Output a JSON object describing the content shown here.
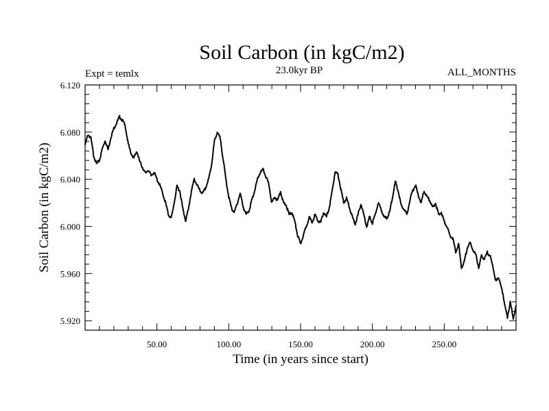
{
  "chart_data": {
    "type": "line",
    "title": "Soil Carbon (in kgC/m2)",
    "subtitle_left": "Expt = temlx",
    "subtitle_center": "23.0kyr BP",
    "subtitle_right": "ALL_MONTHS",
    "xlabel": "Time (in years since start)",
    "ylabel": "Soil Carbon (in kgC/m2)",
    "xlim": [
      0,
      300
    ],
    "ylim": [
      5.912,
      6.12
    ],
    "x_ticks": [
      50,
      100,
      150,
      200,
      250
    ],
    "x_tick_labels": [
      "50.00",
      "100.00",
      "150.00",
      "200.00",
      "250.00"
    ],
    "y_ticks": [
      6.12,
      6.08,
      6.04,
      6.0,
      5.96,
      5.92
    ],
    "y_tick_labels": [
      "6.120",
      "6.080",
      "6.040",
      "6.000",
      "5.960",
      "5.920"
    ],
    "series": [
      {
        "name": "Soil Carbon",
        "color": "#000000",
        "x": [
          0,
          2,
          4,
          6,
          8,
          10,
          12,
          14,
          16,
          18,
          20,
          22,
          24,
          26,
          28,
          30,
          32,
          34,
          36,
          38,
          40,
          42,
          44,
          46,
          48,
          50,
          52,
          54,
          56,
          58,
          60,
          62,
          64,
          66,
          68,
          70,
          72,
          74,
          76,
          78,
          80,
          82,
          84,
          86,
          88,
          90,
          92,
          94,
          96,
          98,
          100,
          102,
          104,
          106,
          108,
          110,
          112,
          114,
          116,
          118,
          120,
          122,
          124,
          126,
          128,
          130,
          132,
          134,
          136,
          138,
          140,
          142,
          144,
          146,
          148,
          150,
          152,
          154,
          156,
          158,
          160,
          162,
          164,
          166,
          168,
          170,
          172,
          174,
          176,
          178,
          180,
          182,
          184,
          186,
          188,
          190,
          192,
          194,
          196,
          198,
          200,
          202,
          204,
          206,
          208,
          210,
          212,
          214,
          216,
          218,
          220,
          222,
          224,
          226,
          228,
          230,
          232,
          234,
          236,
          238,
          240,
          242,
          244,
          246,
          248,
          250,
          252,
          254,
          256,
          258,
          260,
          262,
          264,
          266,
          268,
          270,
          272,
          274,
          276,
          278,
          280,
          282,
          284,
          286,
          288,
          290,
          292,
          294,
          296,
          298,
          300
        ],
        "y": [
          6.069,
          6.078,
          6.075,
          6.06,
          6.053,
          6.056,
          6.066,
          6.073,
          6.065,
          6.076,
          6.083,
          6.088,
          6.093,
          6.09,
          6.085,
          6.07,
          6.062,
          6.058,
          6.064,
          6.055,
          6.05,
          6.045,
          6.048,
          6.043,
          6.046,
          6.04,
          6.035,
          6.028,
          6.02,
          6.01,
          6.007,
          6.02,
          6.034,
          6.03,
          6.015,
          6.005,
          6.015,
          6.03,
          6.04,
          6.035,
          6.03,
          6.028,
          6.033,
          6.04,
          6.052,
          6.072,
          6.08,
          6.075,
          6.058,
          6.04,
          6.025,
          6.015,
          6.012,
          6.02,
          6.028,
          6.017,
          6.01,
          6.013,
          6.022,
          6.03,
          6.04,
          6.046,
          6.048,
          6.042,
          6.035,
          6.02,
          6.025,
          6.022,
          6.03,
          6.02,
          6.018,
          6.01,
          6.012,
          6.004,
          5.992,
          5.985,
          5.993,
          6.0,
          6.008,
          6.003,
          6.01,
          6.005,
          6.003,
          6.012,
          6.008,
          6.016,
          6.03,
          6.046,
          6.044,
          6.032,
          6.02,
          6.024,
          6.016,
          6.008,
          6.002,
          6.01,
          6.019,
          6.01,
          6.0,
          6.008,
          6.003,
          6.01,
          6.02,
          6.015,
          6.008,
          6.007,
          6.012,
          6.025,
          6.038,
          6.03,
          6.018,
          6.015,
          6.01,
          6.022,
          6.03,
          6.035,
          6.026,
          6.02,
          6.03,
          6.025,
          6.022,
          6.016,
          6.02,
          6.01,
          6.012,
          6.004,
          6.0,
          5.992,
          5.99,
          5.978,
          5.985,
          5.965,
          5.97,
          5.982,
          5.986,
          5.98,
          5.976,
          5.965,
          5.975,
          5.972,
          5.978,
          5.975,
          5.965,
          5.953,
          5.957,
          5.947,
          5.935,
          5.922,
          5.937,
          5.921,
          5.933
        ]
      }
    ]
  }
}
